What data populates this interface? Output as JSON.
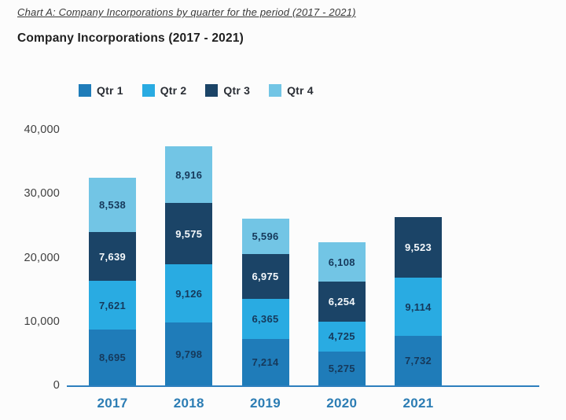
{
  "header": {
    "caption": "Chart A: Company Incorporations by quarter for the period (2017 - 2021)"
  },
  "chart_data": {
    "type": "bar",
    "stacked": true,
    "title": "Company Incorporations (2017 - 2021)",
    "categories": [
      "2017",
      "2018",
      "2019",
      "2020",
      "2021"
    ],
    "series": [
      {
        "name": "Qtr 1",
        "color": "#1f7cb9",
        "value_label_color": "#16395b",
        "values": [
          8695,
          9798,
          7214,
          5275,
          7732
        ]
      },
      {
        "name": "Qtr 2",
        "color": "#29abe2",
        "value_label_color": "#16395b",
        "values": [
          7621,
          9126,
          6365,
          4725,
          9114
        ]
      },
      {
        "name": "Qtr 3",
        "color": "#1b4467",
        "value_label_color": "#f4f8fb",
        "values": [
          7639,
          9575,
          6975,
          6254,
          9523
        ]
      },
      {
        "name": "Qtr 4",
        "color": "#72c5e5",
        "value_label_color": "#16395b",
        "values": [
          8538,
          8916,
          5596,
          6108,
          0
        ]
      }
    ],
    "xlabel": "",
    "ylabel": "",
    "ylim": [
      0,
      40000
    ],
    "yticks": [
      0,
      10000,
      20000,
      30000,
      40000
    ],
    "ytick_labels": [
      "0",
      "10,000",
      "20,000",
      "30,000",
      "40,000"
    ],
    "grid": false,
    "legend_position": "top",
    "value_labels": "inside-segments",
    "axis_color": "#2e7fbe",
    "xtick_color": "#2c7db4"
  }
}
